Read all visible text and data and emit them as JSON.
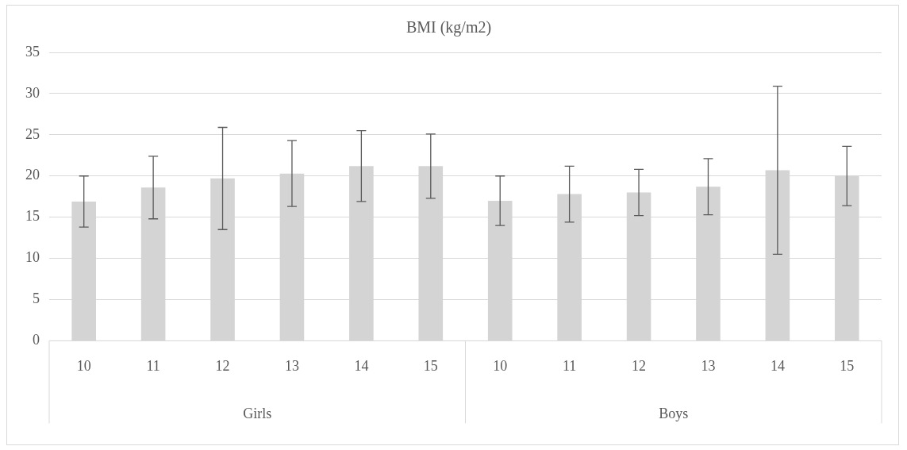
{
  "chart_data": {
    "type": "bar",
    "title": "BMI (kg/m2)",
    "categories": [
      "10",
      "11",
      "12",
      "13",
      "14",
      "15",
      "10",
      "11",
      "12",
      "13",
      "14",
      "15"
    ],
    "values": [
      16.9,
      18.6,
      19.7,
      20.3,
      21.2,
      21.2,
      17.0,
      17.8,
      18.0,
      18.7,
      20.7,
      20.0
    ],
    "errors": [
      3.1,
      3.8,
      6.2,
      4.0,
      4.3,
      3.9,
      3.0,
      3.4,
      2.8,
      3.4,
      10.2,
      3.6
    ],
    "color": "#d4d4d4",
    "annotations": [
      "Girls",
      "Boys"
    ],
    "ylim": [
      0,
      35
    ],
    "yticks": [
      0,
      5,
      10,
      15,
      20,
      25,
      30,
      35
    ],
    "grid": "y",
    "legend": false
  }
}
